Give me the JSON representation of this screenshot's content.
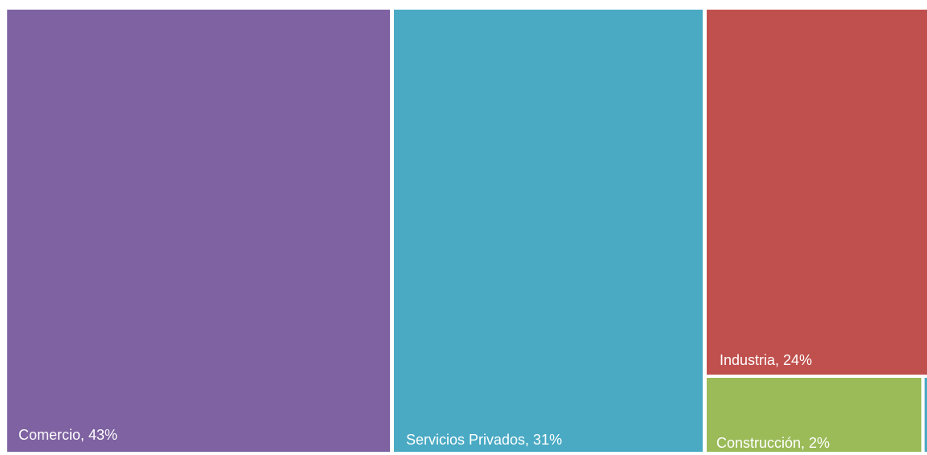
{
  "chart_data": {
    "type": "treemap",
    "title": "",
    "unit": "%",
    "items": [
      {
        "key": "comercio",
        "name": "Comercio",
        "value": 43,
        "label": "Comercio, 43%",
        "color": "#7e62a1"
      },
      {
        "key": "servicios",
        "name": "Servicios Privados",
        "value": 31,
        "label": "Servicios Privados, 31%",
        "color": "#4aaac4"
      },
      {
        "key": "industria",
        "name": "Industria",
        "value": 24,
        "label": "Industria, 24%",
        "color": "#c0504d"
      },
      {
        "key": "construccion",
        "name": "Construcción",
        "value": 2,
        "label": "Construcción, 2%",
        "color": "#9bbb59"
      }
    ]
  }
}
